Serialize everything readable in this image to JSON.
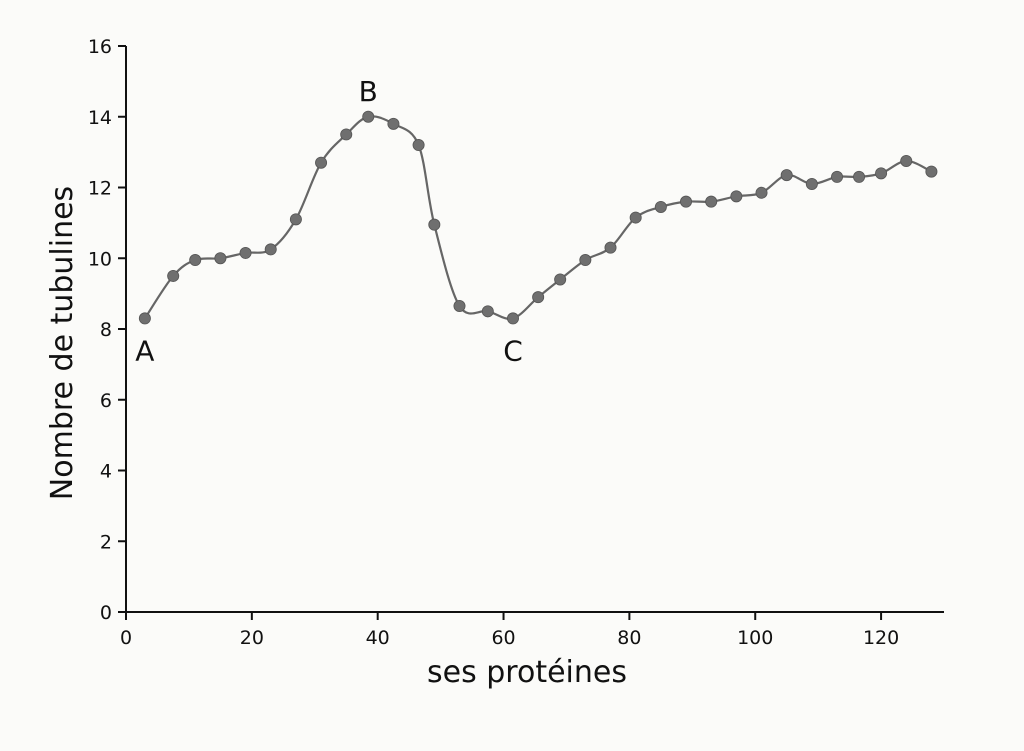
{
  "chart_data": {
    "type": "line",
    "xlabel": "ses protéines",
    "ylabel": "Nombre de tubulines",
    "xlim": [
      0,
      130
    ],
    "ylim": [
      0,
      16
    ],
    "x_ticks": [
      0,
      20,
      40,
      60,
      80,
      100,
      120
    ],
    "y_ticks": [
      0,
      2,
      4,
      6,
      8,
      10,
      12,
      14,
      16
    ],
    "grid": false,
    "legend": "none",
    "colors": {
      "line": "#666666",
      "marker": "#6f6f6f",
      "axis": "#111111"
    },
    "series": [
      {
        "x": [
          3,
          7.5,
          11,
          15,
          19,
          23,
          27,
          31,
          35,
          38.5,
          42.5,
          46.5,
          49,
          53,
          57.5,
          61.5,
          65.5,
          69,
          73,
          77,
          81,
          85,
          89,
          93,
          97,
          101,
          105,
          109,
          113,
          116.5,
          120,
          124,
          128
        ],
        "y": [
          8.3,
          9.5,
          9.95,
          10.0,
          10.15,
          10.25,
          11.1,
          12.7,
          13.5,
          14.0,
          13.8,
          13.2,
          10.95,
          8.65,
          8.5,
          8.3,
          8.9,
          9.4,
          9.95,
          10.3,
          11.15,
          11.45,
          11.6,
          11.6,
          11.75,
          11.85,
          12.35,
          12.1,
          12.3,
          12.3,
          12.4,
          12.75,
          12.45
        ]
      }
    ],
    "annotations": [
      {
        "text": "A",
        "x": 3,
        "y": 8.3
      },
      {
        "text": "B",
        "x": 38.5,
        "y": 14.0
      },
      {
        "text": "C",
        "x": 61.5,
        "y": 8.3
      }
    ]
  }
}
